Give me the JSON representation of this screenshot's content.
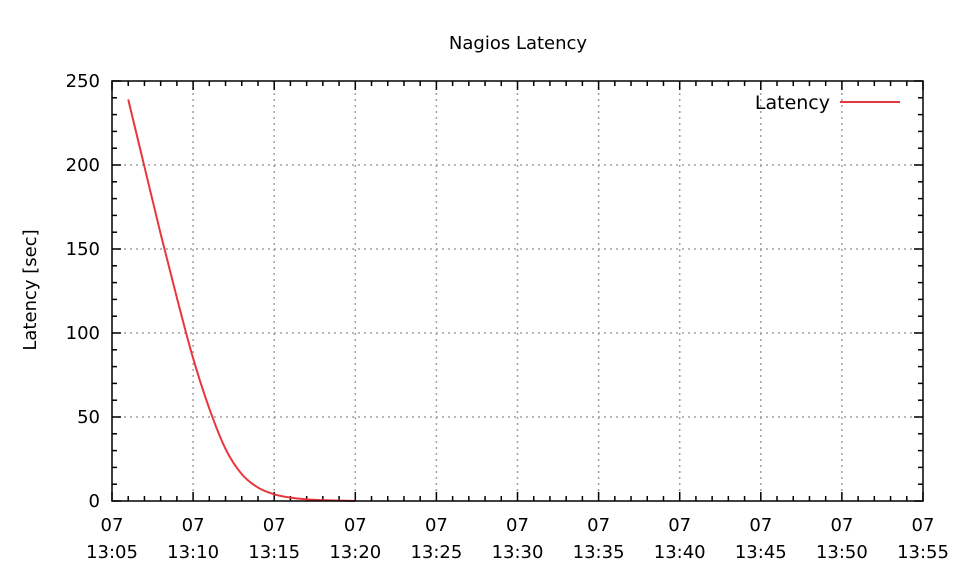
{
  "chart_data": {
    "type": "line",
    "title": "Nagios Latency",
    "xlabel": "",
    "ylabel": "Latency [sec]",
    "xlim": [
      "13:05",
      "13:55"
    ],
    "ylim": [
      0,
      250
    ],
    "x_ticks": [
      {
        "day": "07",
        "time": "13:05"
      },
      {
        "day": "07",
        "time": "13:10"
      },
      {
        "day": "07",
        "time": "13:15"
      },
      {
        "day": "07",
        "time": "13:20"
      },
      {
        "day": "07",
        "time": "13:25"
      },
      {
        "day": "07",
        "time": "13:30"
      },
      {
        "day": "07",
        "time": "13:35"
      },
      {
        "day": "07",
        "time": "13:40"
      },
      {
        "day": "07",
        "time": "13:45"
      },
      {
        "day": "07",
        "time": "13:50"
      },
      {
        "day": "07",
        "time": "13:55"
      }
    ],
    "y_ticks": [
      0,
      50,
      100,
      150,
      200,
      250
    ],
    "grid": true,
    "legend_position": "top-right",
    "series": [
      {
        "name": "Latency",
        "color": "#e8363b",
        "points": [
          {
            "x": "13:06",
            "y": 239
          },
          {
            "x": "13:07",
            "y": 199
          },
          {
            "x": "13:08",
            "y": 159
          },
          {
            "x": "13:09",
            "y": 121
          },
          {
            "x": "13:10",
            "y": 85
          },
          {
            "x": "13:11",
            "y": 55
          },
          {
            "x": "13:12",
            "y": 31
          },
          {
            "x": "13:13",
            "y": 16
          },
          {
            "x": "13:14",
            "y": 8
          },
          {
            "x": "13:15",
            "y": 4
          },
          {
            "x": "13:16",
            "y": 2
          },
          {
            "x": "13:17",
            "y": 1
          },
          {
            "x": "13:18",
            "y": 0.5
          },
          {
            "x": "13:19",
            "y": 0.2
          },
          {
            "x": "13:20",
            "y": 0
          }
        ]
      }
    ]
  }
}
